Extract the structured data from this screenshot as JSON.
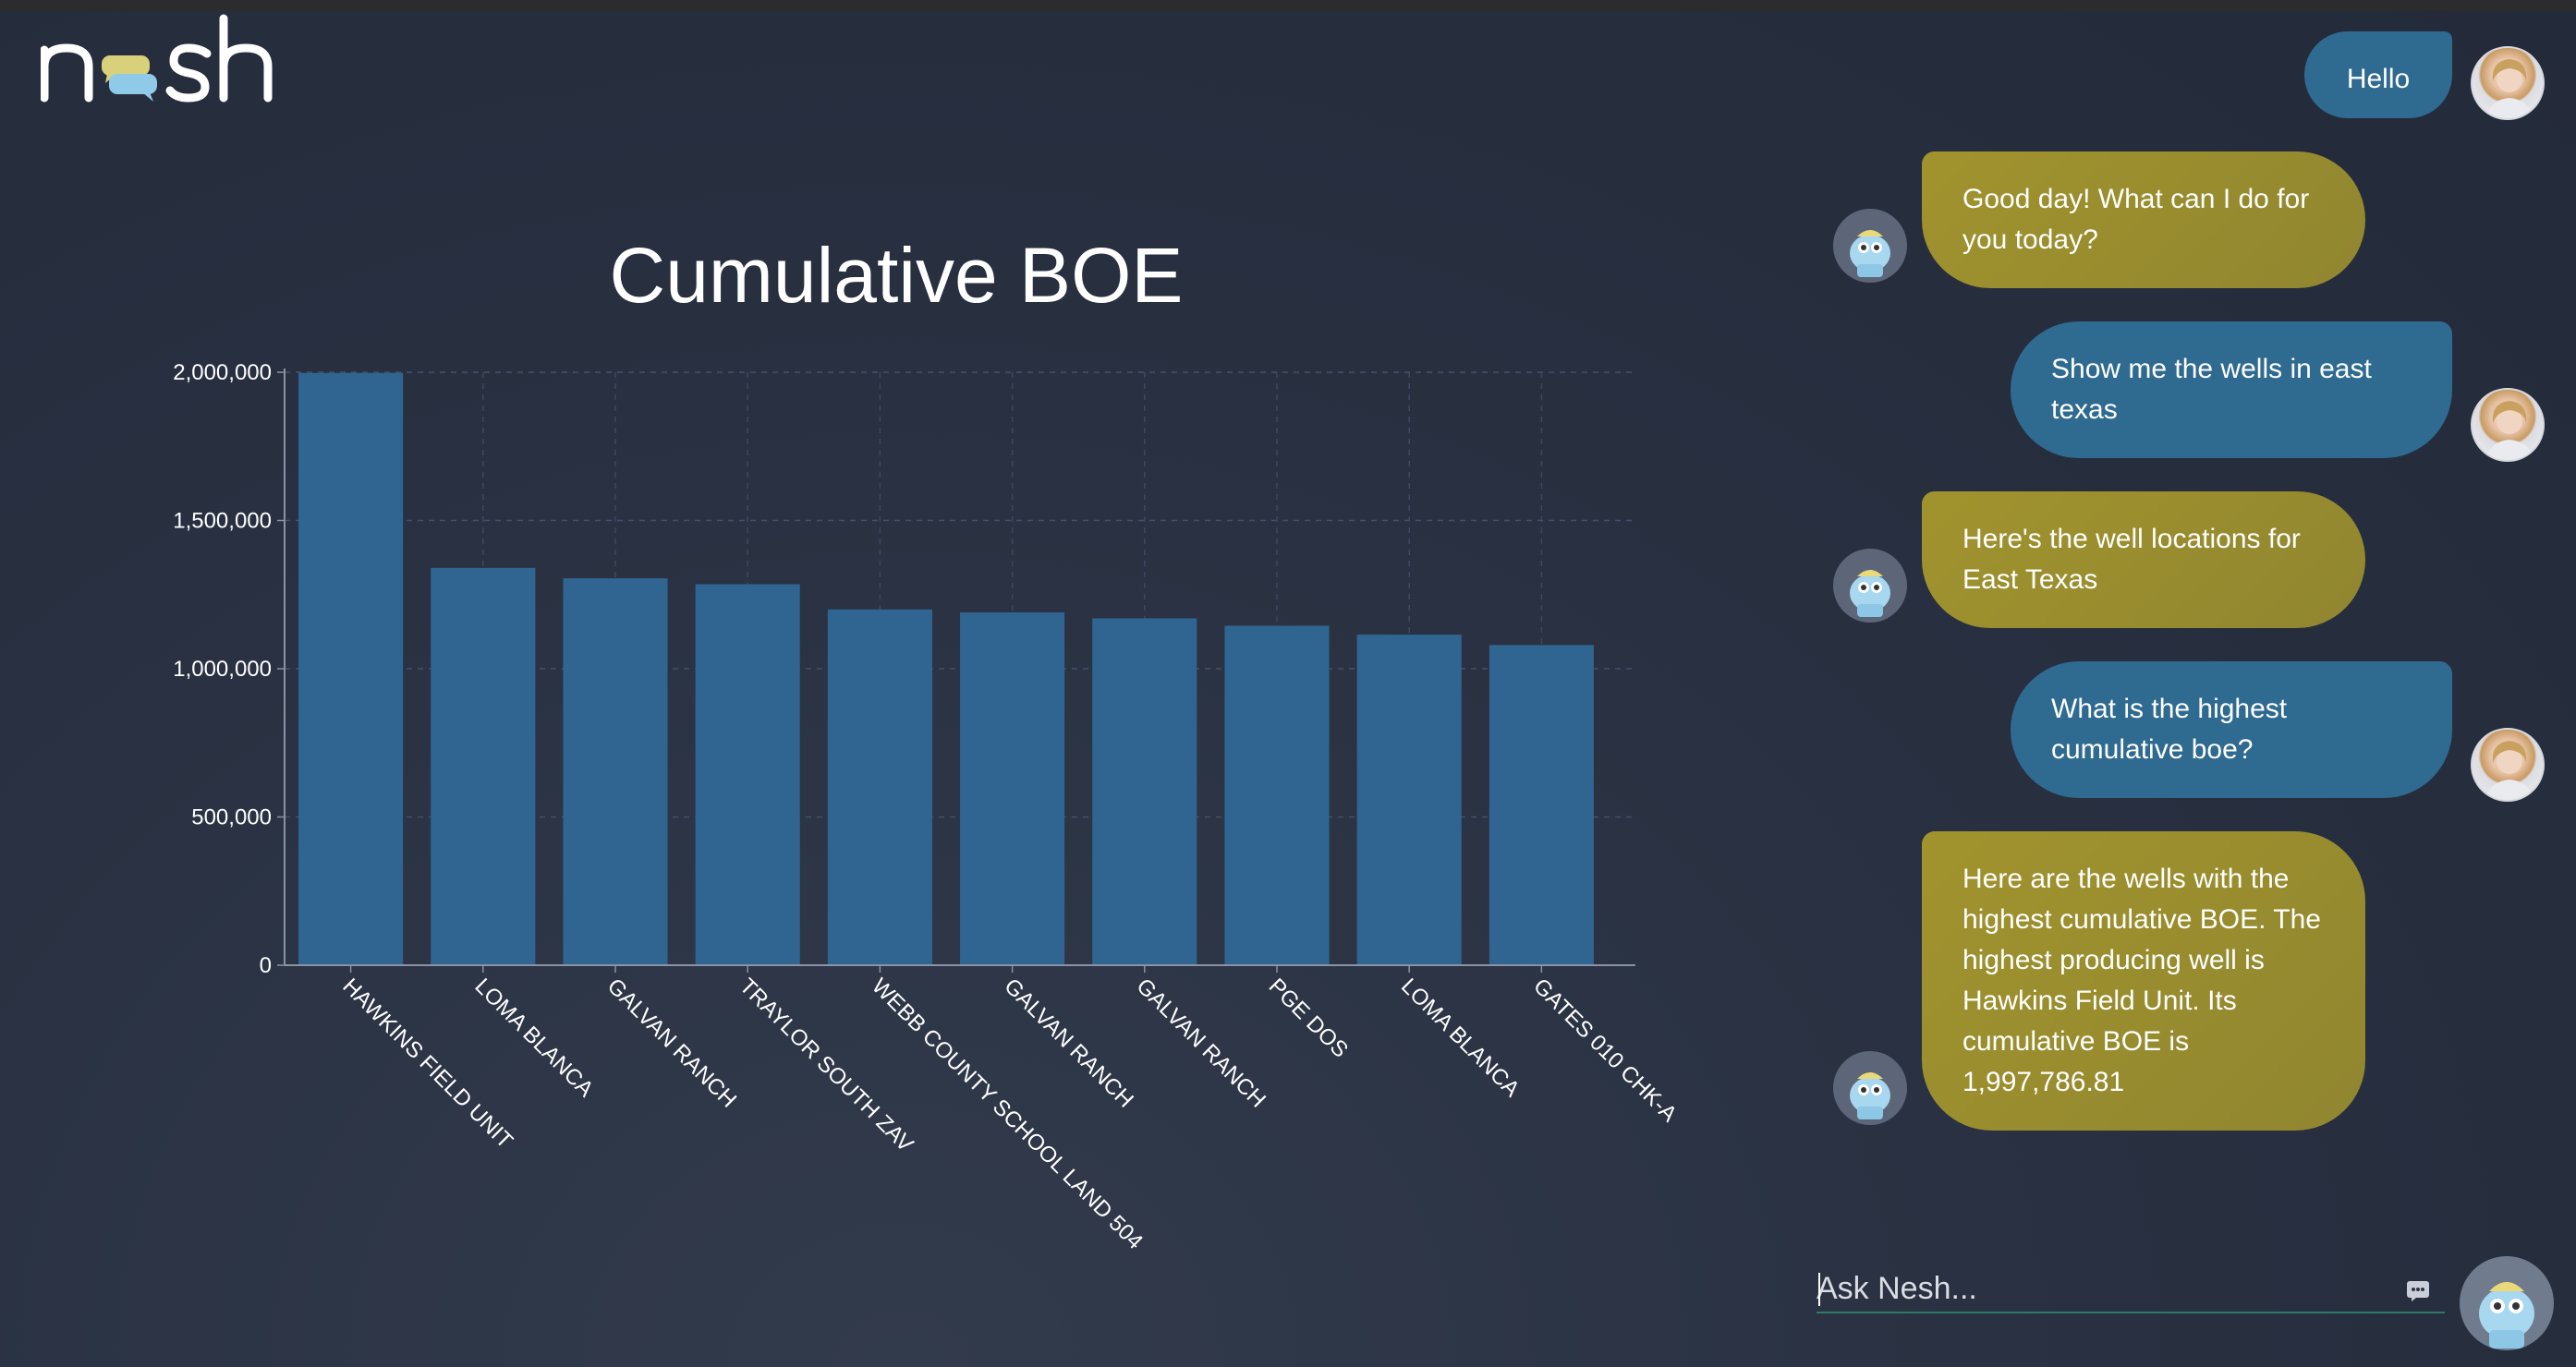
{
  "app": {
    "logo_text": "nesh",
    "colors": {
      "background": "#2a3243",
      "user_bubble": "#2f6a91",
      "bot_bubble": "#9d912f",
      "bar": "#2f6590",
      "accent_underline": "#2e7a66"
    }
  },
  "chart_data": {
    "type": "bar",
    "title": "Cumulative BOE",
    "categories": [
      "HAWKINS FIELD UNIT",
      "LOMA BLANCA",
      "GALVAN RANCH",
      "TRAYLOR SOUTH ZAV",
      "WEBB COUNTY SCHOOL LAND 504",
      "GALVAN RANCH",
      "GALVAN RANCH",
      "PGE DOS",
      "LOMA BLANCA",
      "GATES 010 CHK-A"
    ],
    "values": [
      1997786.81,
      1340000,
      1305000,
      1285000,
      1200000,
      1190000,
      1170000,
      1145000,
      1115000,
      1080000
    ],
    "y_ticks": [
      "0",
      "500,000",
      "1,000,000",
      "1,500,000",
      "2,000,000"
    ],
    "ylim": [
      0,
      2000000
    ],
    "grid": true,
    "xlabel": "",
    "ylabel": ""
  },
  "chat": {
    "messages": [
      {
        "role": "user",
        "text": "Hello"
      },
      {
        "role": "bot",
        "text": "Good day! What can I do for you today?"
      },
      {
        "role": "user",
        "text": "Show me the wells in east texas"
      },
      {
        "role": "bot",
        "text": "Here's the well locations for East Texas"
      },
      {
        "role": "user",
        "text": "What is the highest cumulative boe?"
      },
      {
        "role": "bot",
        "text": "Here are the wells with the highest cumulative BOE. The highest producing well is Hawkins Field Unit. Its cumulative BOE is 1,997,786.81"
      }
    ],
    "input": {
      "placeholder": "Ask Nesh...",
      "value": ""
    },
    "icons": {
      "emoji": "chat-bubble-dots-icon",
      "user_avatar": "user-avatar",
      "bot_avatar": "robot-avatar"
    }
  }
}
